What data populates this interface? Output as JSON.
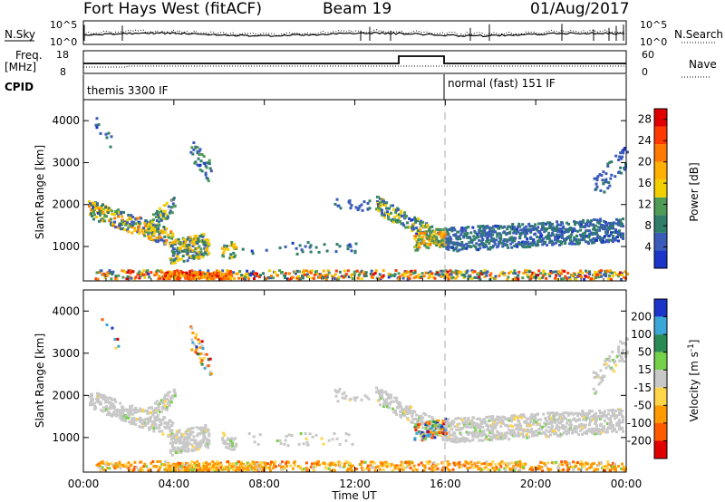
{
  "header": {
    "station": "Fort Hays West (fitACF)",
    "beam": "Beam 19",
    "date": "01/Aug/2017"
  },
  "colors": {
    "power_scale": [
      "#1a35c8",
      "#3a5bb8",
      "#2f7d6a",
      "#4f9a55",
      "#f2d000",
      "#ffb000",
      "#ff7a00",
      "#ff3a00",
      "#e00000"
    ],
    "velocity_scale": [
      "#1a35c8",
      "#3aa7d8",
      "#2a8a55",
      "#75d04a",
      "#c8c8c8",
      "#ffd54a",
      "#ff9a00",
      "#ff5a00",
      "#e00000"
    ],
    "marker_line": "#aaaaaa"
  },
  "strip_panels": {
    "nsky_label": "N.Sky",
    "nsky_ticks": [
      "10^5",
      "10^0"
    ],
    "nsearch_label": "N.Search",
    "freq_label_line1": "Freq.",
    "freq_label_line2": "[MHz]",
    "freq_ticks": [
      "18",
      "8"
    ],
    "nave_label": "Nave",
    "nave_ticks": [
      "60",
      "0"
    ],
    "cpid_label": "CPID",
    "cpid_segments": [
      {
        "text": "themis 3300 IF",
        "start_hour": 0
      },
      {
        "text": "normal (fast) 151 IF",
        "start_hour": 16
      }
    ]
  },
  "chart_data": [
    {
      "type": "heatmap",
      "title": "",
      "xlabel": "",
      "ylabel": "Slant Range [km]",
      "xlim": [
        0,
        24
      ],
      "ylim": [
        180,
        4500
      ],
      "x_ticks": [
        0,
        4,
        8,
        12,
        16,
        20,
        24
      ],
      "y_ticks": [
        1000,
        2000,
        3000,
        4000
      ],
      "colorbar": {
        "label": "Power [dB]",
        "ticks": [
          4,
          8,
          12,
          16,
          20,
          24,
          28
        ],
        "range": [
          0,
          30
        ]
      },
      "scatter_regions": [
        {
          "t0": 0.2,
          "t1": 3.9,
          "r_center": 1900,
          "r_end": 1200,
          "width": 220,
          "density": 0.55,
          "value_range": [
            3,
            22
          ]
        },
        {
          "t0": 2.8,
          "t1": 4.0,
          "r_center": 1500,
          "r_end": 2000,
          "width": 200,
          "density": 0.5,
          "value_range": [
            4,
            16
          ]
        },
        {
          "t0": 3.8,
          "t1": 5.5,
          "r_center": 850,
          "r_end": 1050,
          "width": 280,
          "density": 0.7,
          "value_range": [
            4,
            20
          ]
        },
        {
          "t0": 4.7,
          "t1": 5.6,
          "r_center": 3400,
          "r_end": 2700,
          "width": 300,
          "density": 0.25,
          "value_range": [
            3,
            12
          ]
        },
        {
          "t0": 6.1,
          "t1": 6.7,
          "r_center": 950,
          "r_end": 900,
          "width": 200,
          "density": 0.5,
          "value_range": [
            6,
            20
          ]
        },
        {
          "t0": 0.5,
          "t1": 24.0,
          "r_center": 320,
          "r_end": 320,
          "width": 110,
          "density": 0.5,
          "value_range": [
            3,
            28
          ]
        },
        {
          "t0": 3.5,
          "t1": 6.5,
          "r_center": 300,
          "r_end": 300,
          "width": 80,
          "density": 0.85,
          "value_range": [
            16,
            28
          ]
        },
        {
          "t0": 12.9,
          "t1": 16.0,
          "r_center": 2000,
          "r_end": 1100,
          "width": 200,
          "density": 0.55,
          "value_range": [
            3,
            18
          ]
        },
        {
          "t0": 14.6,
          "t1": 16.0,
          "r_center": 1100,
          "r_end": 1250,
          "width": 200,
          "density": 0.7,
          "value_range": [
            6,
            22
          ]
        },
        {
          "t0": 16.0,
          "t1": 23.8,
          "r_center": 1300,
          "r_end": 1550,
          "width": 140,
          "density": 0.6,
          "value_range": [
            3,
            10
          ]
        },
        {
          "t0": 16.0,
          "t1": 23.8,
          "r_center": 1000,
          "r_end": 1250,
          "width": 130,
          "density": 0.6,
          "value_range": [
            3,
            10
          ]
        },
        {
          "t0": 7.0,
          "t1": 12.0,
          "r_center": 950,
          "r_end": 950,
          "width": 150,
          "density": 0.08,
          "value_range": [
            3,
            10
          ]
        },
        {
          "t0": 11.0,
          "t1": 12.6,
          "r_center": 2000,
          "r_end": 2000,
          "width": 150,
          "density": 0.15,
          "value_range": [
            3,
            8
          ]
        },
        {
          "t0": 0.5,
          "t1": 1.5,
          "r_center": 4000,
          "r_end": 3200,
          "width": 200,
          "density": 0.08,
          "value_range": [
            3,
            8
          ]
        },
        {
          "t0": 22.5,
          "t1": 24.0,
          "r_center": 2300,
          "r_end": 3200,
          "width": 300,
          "density": 0.2,
          "value_range": [
            3,
            8
          ]
        }
      ]
    },
    {
      "type": "heatmap",
      "title": "",
      "xlabel": "Time UT",
      "ylabel": "Slant Range [km]",
      "xlim": [
        0,
        24
      ],
      "ylim": [
        180,
        4500
      ],
      "x_ticks": [
        0,
        4,
        8,
        12,
        16,
        20,
        24
      ],
      "x_tick_labels": [
        "00:00",
        "04:00",
        "08:00",
        "12:00",
        "16:00",
        "20:00",
        "00:00"
      ],
      "y_ticks": [
        1000,
        2000,
        3000,
        4000
      ],
      "colorbar": {
        "label": "Velocity [m s^-1]",
        "ticks": [
          "200",
          "100",
          "50",
          "15",
          "-15",
          "-50",
          "-100",
          "-200"
        ]
      },
      "scatter_regions": [
        {
          "t0": 0.2,
          "t1": 3.9,
          "r_center": 1900,
          "r_end": 1200,
          "width": 220,
          "density": 0.55,
          "category": "ground"
        },
        {
          "t0": 2.8,
          "t1": 4.0,
          "r_center": 1500,
          "r_end": 2000,
          "width": 200,
          "density": 0.5,
          "category": "ground"
        },
        {
          "t0": 3.8,
          "t1": 5.5,
          "r_center": 850,
          "r_end": 1050,
          "width": 280,
          "density": 0.7,
          "category": "ground"
        },
        {
          "t0": 4.7,
          "t1": 5.6,
          "r_center": 3400,
          "r_end": 2700,
          "width": 300,
          "density": 0.25,
          "category": "mixed"
        },
        {
          "t0": 6.1,
          "t1": 6.7,
          "r_center": 950,
          "r_end": 900,
          "width": 200,
          "density": 0.5,
          "category": "ground"
        },
        {
          "t0": 0.5,
          "t1": 24.0,
          "r_center": 320,
          "r_end": 320,
          "width": 110,
          "density": 0.5,
          "category": "negative"
        },
        {
          "t0": 3.5,
          "t1": 8.0,
          "r_center": 300,
          "r_end": 300,
          "width": 90,
          "density": 0.85,
          "category": "negative"
        },
        {
          "t0": 12.9,
          "t1": 16.0,
          "r_center": 2000,
          "r_end": 1100,
          "width": 200,
          "density": 0.55,
          "category": "ground"
        },
        {
          "t0": 14.6,
          "t1": 16.0,
          "r_center": 1100,
          "r_end": 1250,
          "width": 200,
          "density": 0.7,
          "category": "mixed"
        },
        {
          "t0": 16.0,
          "t1": 23.8,
          "r_center": 1300,
          "r_end": 1550,
          "width": 140,
          "density": 0.6,
          "category": "ground"
        },
        {
          "t0": 16.0,
          "t1": 23.8,
          "r_center": 1000,
          "r_end": 1250,
          "width": 130,
          "density": 0.6,
          "category": "ground"
        },
        {
          "t0": 7.0,
          "t1": 12.0,
          "r_center": 950,
          "r_end": 950,
          "width": 150,
          "density": 0.08,
          "category": "ground"
        },
        {
          "t0": 11.0,
          "t1": 12.6,
          "r_center": 2000,
          "r_end": 2000,
          "width": 150,
          "density": 0.15,
          "category": "ground"
        },
        {
          "t0": 0.5,
          "t1": 1.5,
          "r_center": 4000,
          "r_end": 3200,
          "width": 200,
          "density": 0.08,
          "category": "mixed"
        },
        {
          "t0": 22.5,
          "t1": 24.0,
          "r_center": 2300,
          "r_end": 3200,
          "width": 300,
          "density": 0.2,
          "category": "ground"
        }
      ]
    }
  ]
}
